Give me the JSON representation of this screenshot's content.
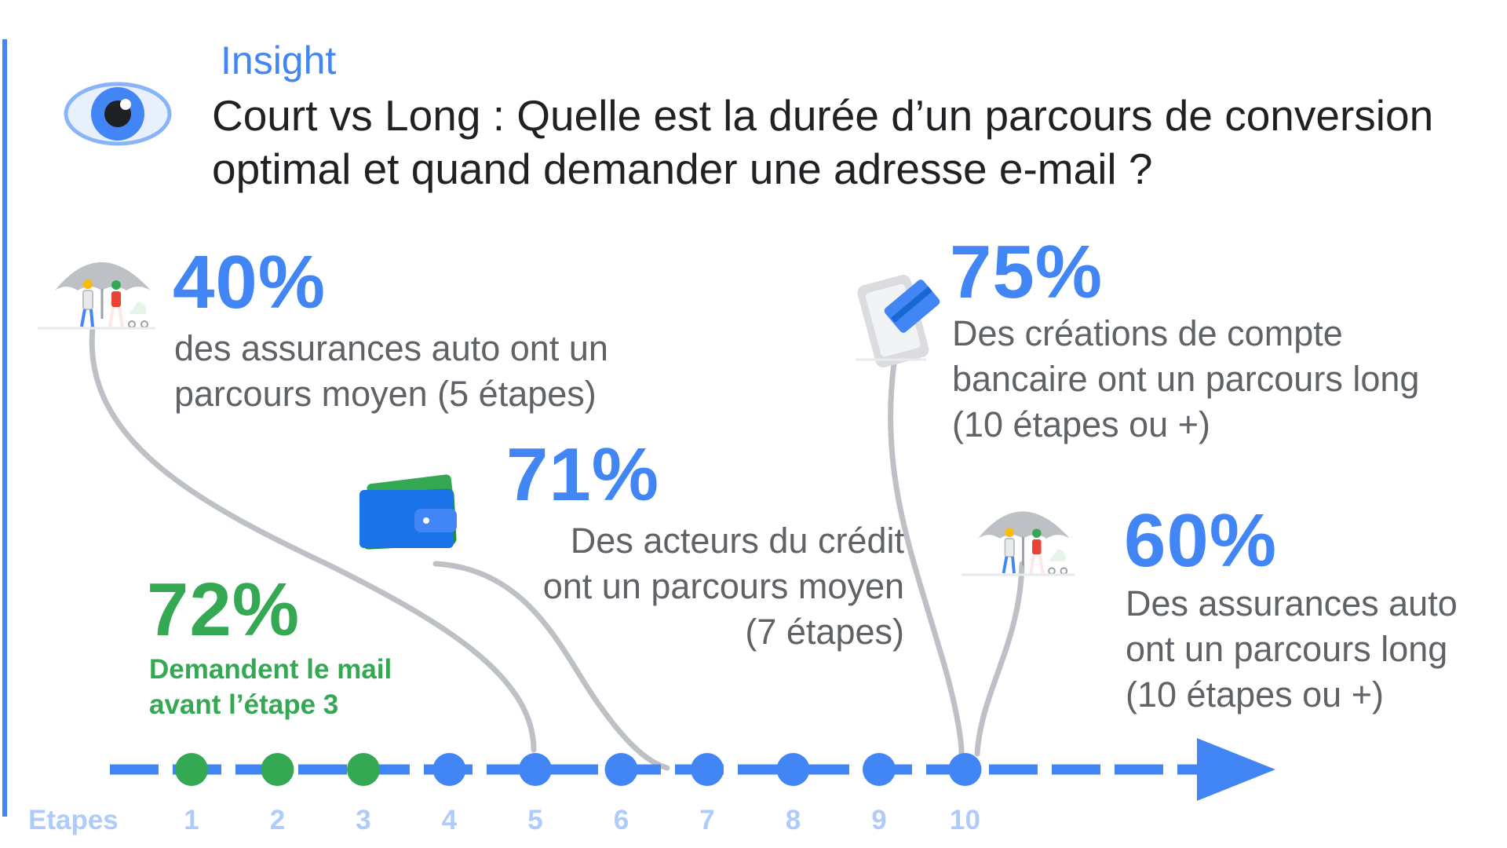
{
  "header": {
    "kicker": "Insight",
    "title": "Court vs Long : Quelle est la durée d’un parcours de conversion optimal et quand demander une adresse e-mail ?"
  },
  "timeline": {
    "axis_label": "Etapes",
    "steps": [
      "1",
      "2",
      "3",
      "4",
      "5",
      "6",
      "7",
      "8",
      "9",
      "10"
    ],
    "green_steps": 3,
    "colors": {
      "blue": "#4285F4",
      "green": "#34A853",
      "connector": "#BDC1C6"
    }
  },
  "callouts": {
    "insurance_medium": {
      "value": "40%",
      "text": "des assurances auto ont un parcours moyen (5 étapes)",
      "icon": "umbrella-family-icon",
      "step": 5
    },
    "credit_medium": {
      "value": "71%",
      "text_line1": "Des acteurs du crédit",
      "text_line2": "ont un parcours moyen",
      "text_line3": "(7  étapes)",
      "icon": "wallet-icon",
      "step": 7
    },
    "email_early": {
      "value": "72%",
      "text": "Demandent le mail avant l’étape 3"
    },
    "bank_long": {
      "value": "75%",
      "text": "Des créations de compte bancaire ont un parcours long (10 étapes ou +)",
      "icon": "phone-card-icon",
      "step": 10
    },
    "insurance_long": {
      "value": "60%",
      "text": "Des assurances auto ont un parcours long (10 étapes ou +)",
      "icon": "umbrella-family-icon",
      "step": 10
    }
  }
}
